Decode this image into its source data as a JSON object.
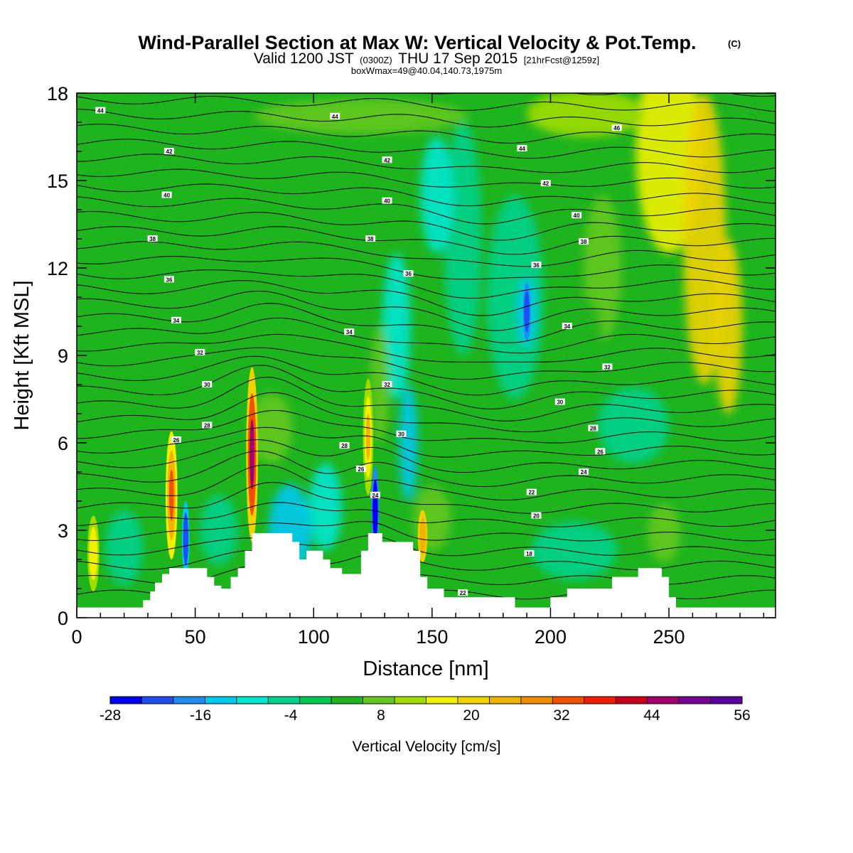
{
  "title": "Wind-Parallel Section at Max W: Vertical Velocity & Pot.Temp.",
  "copyright": "(C)",
  "subtitle_main1": "Valid 1200 JST",
  "subtitle_utc": "(0300Z)",
  "subtitle_main2": "THU 17 Sep 2015",
  "subtitle_fcst": "[21hrFcst@1259z]",
  "subtitle2": "boxWmax=49@40.04,140.73,1975m",
  "chart_data": {
    "type": "heatmap",
    "title": "Wind-Parallel Section at Max W: Vertical Velocity & Pot.Temp.",
    "xlabel": "Distance [nm]",
    "ylabel": "Height [Kft MSL]",
    "xlim": [
      0,
      295
    ],
    "ylim": [
      0,
      18
    ],
    "xticks": [
      0,
      50,
      100,
      150,
      200,
      250
    ],
    "yticks": [
      0,
      3,
      6,
      9,
      12,
      15,
      18
    ],
    "colorbar": {
      "label": "Vertical Velocity [cm/s]",
      "ticks": [
        -28,
        -16,
        -4,
        8,
        20,
        32,
        44,
        56
      ],
      "range": [
        -28,
        56
      ],
      "colors": [
        "#0000f0",
        "#1e50f0",
        "#1e8cf0",
        "#00c8f0",
        "#00e6d2",
        "#00d28c",
        "#00c850",
        "#1eb41e",
        "#64c81e",
        "#a0dc00",
        "#f0f000",
        "#f0d200",
        "#f0b400",
        "#f08c00",
        "#f05000",
        "#f01e00",
        "#c8001e",
        "#a0006e",
        "#780096",
        "#5a00a0"
      ]
    },
    "contour_labels": [
      {
        "x": 10,
        "y": 17.4,
        "label": "44"
      },
      {
        "x": 109,
        "y": 17.2,
        "label": "44"
      },
      {
        "x": 39,
        "y": 16.0,
        "label": "42"
      },
      {
        "x": 131,
        "y": 15.7,
        "label": "42"
      },
      {
        "x": 38,
        "y": 14.5,
        "label": "40"
      },
      {
        "x": 131,
        "y": 14.3,
        "label": "40"
      },
      {
        "x": 32,
        "y": 13.0,
        "label": "38"
      },
      {
        "x": 124,
        "y": 13.0,
        "label": "38"
      },
      {
        "x": 39,
        "y": 11.6,
        "label": "36"
      },
      {
        "x": 140,
        "y": 11.8,
        "label": "36"
      },
      {
        "x": 42,
        "y": 10.2,
        "label": "34"
      },
      {
        "x": 115,
        "y": 9.8,
        "label": "34"
      },
      {
        "x": 52,
        "y": 9.1,
        "label": "32"
      },
      {
        "x": 131,
        "y": 8.0,
        "label": "32"
      },
      {
        "x": 55,
        "y": 8.0,
        "label": "30"
      },
      {
        "x": 137,
        "y": 6.3,
        "label": "30"
      },
      {
        "x": 55,
        "y": 6.6,
        "label": "28"
      },
      {
        "x": 113,
        "y": 5.9,
        "label": "28"
      },
      {
        "x": 42,
        "y": 6.1,
        "label": "26"
      },
      {
        "x": 120,
        "y": 5.1,
        "label": "26"
      },
      {
        "x": 126,
        "y": 4.2,
        "label": "24"
      },
      {
        "x": 228,
        "y": 16.8,
        "label": "46"
      },
      {
        "x": 188,
        "y": 16.1,
        "label": "44"
      },
      {
        "x": 198,
        "y": 14.9,
        "label": "42"
      },
      {
        "x": 211,
        "y": 13.8,
        "label": "40"
      },
      {
        "x": 214,
        "y": 12.9,
        "label": "38"
      },
      {
        "x": 194,
        "y": 12.1,
        "label": "36"
      },
      {
        "x": 207,
        "y": 10.0,
        "label": "34"
      },
      {
        "x": 224,
        "y": 8.6,
        "label": "32"
      },
      {
        "x": 204,
        "y": 7.4,
        "label": "30"
      },
      {
        "x": 218,
        "y": 6.5,
        "label": "28"
      },
      {
        "x": 221,
        "y": 5.7,
        "label": "26"
      },
      {
        "x": 214,
        "y": 5.0,
        "label": "24"
      },
      {
        "x": 192,
        "y": 4.3,
        "label": "22"
      },
      {
        "x": 194,
        "y": 3.5,
        "label": "20"
      },
      {
        "x": 191,
        "y": 2.2,
        "label": "18"
      },
      {
        "x": 163,
        "y": 0.85,
        "label": "22"
      }
    ],
    "terrain": [
      [
        0,
        0.35
      ],
      [
        10,
        0.35
      ],
      [
        10,
        0.35
      ],
      [
        28,
        0.35
      ],
      [
        28,
        0.6
      ],
      [
        31,
        0.6
      ],
      [
        31,
        0.9
      ],
      [
        33,
        0.9
      ],
      [
        33,
        1.2
      ],
      [
        36,
        1.2
      ],
      [
        36,
        1.5
      ],
      [
        39,
        1.5
      ],
      [
        39,
        1.7
      ],
      [
        55,
        1.7
      ],
      [
        55,
        1.4
      ],
      [
        58,
        1.4
      ],
      [
        58,
        1.1
      ],
      [
        61,
        1.1
      ],
      [
        61,
        1.0
      ],
      [
        65,
        1.0
      ],
      [
        65,
        1.4
      ],
      [
        68,
        1.4
      ],
      [
        68,
        1.7
      ],
      [
        71,
        1.7
      ],
      [
        71,
        2.3
      ],
      [
        74,
        2.3
      ],
      [
        74,
        2.9
      ],
      [
        91,
        2.9
      ],
      [
        91,
        2.6
      ],
      [
        94,
        2.6
      ],
      [
        94,
        2.0
      ],
      [
        97,
        2.0
      ],
      [
        97,
        2.3
      ],
      [
        104,
        2.3
      ],
      [
        104,
        2.0
      ],
      [
        107,
        2.0
      ],
      [
        107,
        1.7
      ],
      [
        112,
        1.7
      ],
      [
        112,
        1.5
      ],
      [
        120,
        1.5
      ],
      [
        120,
        2.3
      ],
      [
        123,
        2.3
      ],
      [
        123,
        2.9
      ],
      [
        129,
        2.9
      ],
      [
        129,
        2.6
      ],
      [
        142,
        2.6
      ],
      [
        142,
        2.3
      ],
      [
        145,
        2.3
      ],
      [
        145,
        1.4
      ],
      [
        148,
        1.4
      ],
      [
        148,
        1.0
      ],
      [
        155,
        1.0
      ],
      [
        155,
        0.7
      ],
      [
        185,
        0.7
      ],
      [
        185,
        0.35
      ],
      [
        200,
        0.35
      ],
      [
        200,
        0.7
      ],
      [
        207,
        0.7
      ],
      [
        207,
        1.0
      ],
      [
        226,
        1.0
      ],
      [
        226,
        1.4
      ],
      [
        237,
        1.4
      ],
      [
        237,
        1.7
      ],
      [
        247,
        1.7
      ],
      [
        247,
        1.4
      ],
      [
        250,
        1.4
      ],
      [
        250,
        0.7
      ],
      [
        253,
        0.7
      ],
      [
        253,
        0.35
      ],
      [
        295,
        0.35
      ]
    ]
  }
}
